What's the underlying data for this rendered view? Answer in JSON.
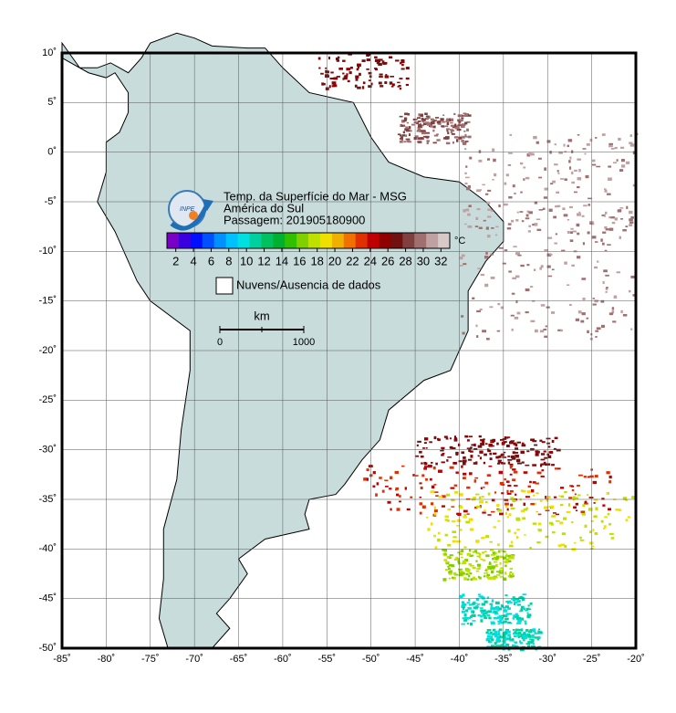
{
  "map": {
    "title_lines": [
      "Temp. da Superfície do Mar - MSG",
      "América do Sul",
      "Passagem: 201905180900"
    ],
    "colorbar": {
      "unit": "°C",
      "clim": [
        1,
        33
      ],
      "ticks": [
        2,
        4,
        6,
        8,
        10,
        12,
        14,
        16,
        18,
        20,
        22,
        24,
        26,
        28,
        30,
        32
      ],
      "colors": [
        "#7a00c8",
        "#3a00e0",
        "#0010ff",
        "#0050ff",
        "#0090ff",
        "#00c0ff",
        "#00e0e0",
        "#00d0a0",
        "#00c060",
        "#00b030",
        "#30c000",
        "#80d000",
        "#c0e000",
        "#f0e000",
        "#f0b000",
        "#f07000",
        "#e03000",
        "#c00000",
        "#900000",
        "#701010",
        "#804040",
        "#a07070",
        "#c0a0a0",
        "#d8c8c8"
      ]
    },
    "legend_label": "Nuvens/Ausencia de dados",
    "scale": {
      "unit": "km",
      "labels": [
        "0",
        "1000"
      ]
    },
    "xlim": [
      -85,
      -20
    ],
    "ylim": [
      -50,
      10
    ],
    "xticks": [
      {
        "value": -85,
        "label": "-85˚"
      },
      {
        "value": -80,
        "label": "-80˚"
      },
      {
        "value": -75,
        "label": "-75˚"
      },
      {
        "value": -70,
        "label": "-70˚"
      },
      {
        "value": -65,
        "label": "-65˚"
      },
      {
        "value": -60,
        "label": "-60˚"
      },
      {
        "value": -55,
        "label": "-55˚"
      },
      {
        "value": -50,
        "label": "-50˚"
      },
      {
        "value": -45,
        "label": "-45˚"
      },
      {
        "value": -40,
        "label": "-40˚"
      },
      {
        "value": -35,
        "label": "-35˚"
      },
      {
        "value": -30,
        "label": "-30˚"
      },
      {
        "value": -25,
        "label": "-25˚"
      },
      {
        "value": -20,
        "label": "-20˚"
      }
    ],
    "yticks": [
      {
        "value": 10,
        "label": "10˚"
      },
      {
        "value": 5,
        "label": "5˚"
      },
      {
        "value": 0,
        "label": "0˚"
      },
      {
        "value": -5,
        "label": "-5˚"
      },
      {
        "value": -10,
        "label": "-10˚"
      },
      {
        "value": -15,
        "label": "-15˚"
      },
      {
        "value": -20,
        "label": "-20˚"
      },
      {
        "value": -25,
        "label": "-25˚"
      },
      {
        "value": -30,
        "label": "-30˚"
      },
      {
        "value": -35,
        "label": "-35˚"
      },
      {
        "value": -40,
        "label": "-40˚"
      },
      {
        "value": -45,
        "label": "-45˚"
      },
      {
        "value": -50,
        "label": "-50˚"
      }
    ],
    "grid": true
  }
}
